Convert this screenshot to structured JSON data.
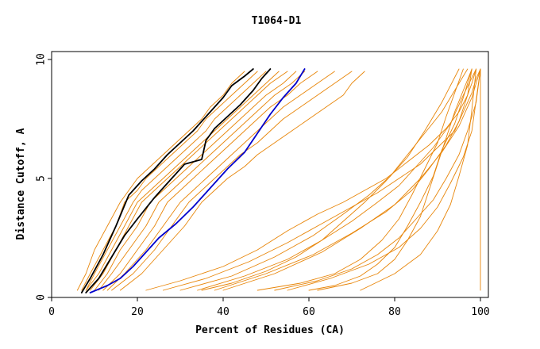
{
  "chart_data": {
    "type": "line",
    "title": "T1064-D1",
    "xlabel": "Percent of Residues (CA)",
    "ylabel": "Distance Cutoff, A",
    "xlim": [
      0,
      100
    ],
    "ylim": [
      0,
      10
    ],
    "xticks": [
      "0",
      "20",
      "40",
      "60",
      "80",
      "100"
    ],
    "yticks": [
      "0",
      "5",
      "10"
    ],
    "grid": false,
    "colors": {
      "models": "#e8860a",
      "highlight": "#000000",
      "reference": "#0000cc",
      "axes": "#000000"
    },
    "series": [
      {
        "group": "models",
        "x": [
          6,
          8,
          10,
          13,
          16,
          18,
          20,
          23,
          26,
          29,
          32,
          35,
          37,
          40,
          42,
          45
        ],
        "y": [
          0.3,
          1,
          2,
          3,
          4,
          4.5,
          5,
          5.5,
          6,
          6.5,
          7,
          7.5,
          8,
          8.5,
          9,
          9.5
        ]
      },
      {
        "group": "models",
        "x": [
          7,
          9,
          12,
          15,
          17,
          20,
          22,
          25,
          28,
          31,
          34,
          36,
          39,
          42,
          45,
          48
        ],
        "y": [
          0.3,
          1,
          2,
          3,
          4,
          4.5,
          5,
          5.5,
          6,
          6.5,
          7,
          7.5,
          8,
          8.5,
          9,
          9.5
        ]
      },
      {
        "group": "models",
        "x": [
          8,
          10,
          13,
          16,
          19,
          21,
          24,
          27,
          30,
          33,
          36,
          38,
          41,
          44,
          47,
          50
        ],
        "y": [
          0.3,
          1,
          2,
          3,
          4,
          4.5,
          5,
          5.5,
          6,
          6.5,
          7,
          7.5,
          8,
          8.5,
          9,
          9.5
        ]
      },
      {
        "group": "models",
        "x": [
          8,
          11,
          14,
          17,
          20,
          23,
          26,
          29,
          32,
          35,
          38,
          41,
          44,
          47,
          50,
          53
        ],
        "y": [
          0.3,
          1,
          2,
          3,
          4,
          4.5,
          5,
          5.5,
          6,
          6.5,
          7,
          7.5,
          8,
          8.5,
          9,
          9.5
        ]
      },
      {
        "group": "models",
        "x": [
          9,
          12,
          15,
          18,
          21,
          24,
          27,
          30,
          33,
          36,
          39,
          42,
          45,
          48,
          51,
          55
        ],
        "y": [
          0.3,
          1,
          2,
          3,
          4,
          4.5,
          5,
          5.5,
          6,
          6.5,
          7,
          7.5,
          8,
          8.5,
          9,
          9.5
        ]
      },
      {
        "group": "models",
        "x": [
          10,
          13,
          16,
          20,
          23,
          26,
          29,
          32,
          35,
          38,
          41,
          44,
          47,
          50,
          54,
          57
        ],
        "y": [
          0.3,
          1,
          2,
          3,
          4,
          4.5,
          5,
          5.5,
          6,
          6.5,
          7,
          7.5,
          8,
          8.5,
          9,
          9.5
        ]
      },
      {
        "group": "models",
        "x": [
          11,
          14,
          18,
          22,
          25,
          28,
          31,
          34,
          37,
          40,
          43,
          46,
          49,
          52,
          56,
          59
        ],
        "y": [
          0.3,
          1,
          2,
          3,
          4,
          4.5,
          5,
          5.5,
          6,
          6.5,
          7,
          7.5,
          8,
          8.5,
          9,
          9.5
        ]
      },
      {
        "group": "models",
        "x": [
          12,
          16,
          20,
          24,
          27,
          30,
          33,
          36,
          39,
          42,
          45,
          48,
          51,
          55,
          58,
          62
        ],
        "y": [
          0.3,
          1,
          2,
          3,
          4,
          4.5,
          5,
          5.5,
          6,
          6.5,
          7,
          7.5,
          8,
          8.5,
          9,
          9.5
        ]
      },
      {
        "group": "models",
        "x": [
          13,
          17,
          22,
          26,
          30,
          33,
          36,
          39,
          42,
          45,
          48,
          51,
          54,
          58,
          62,
          66
        ],
        "y": [
          0.3,
          1,
          2,
          3,
          4,
          4.5,
          5,
          5.5,
          6,
          6.5,
          7,
          7.5,
          8,
          8.5,
          9,
          9.5
        ]
      },
      {
        "group": "models",
        "x": [
          14,
          19,
          24,
          28,
          32,
          35,
          38,
          41,
          44,
          48,
          51,
          54,
          58,
          62,
          66,
          70
        ],
        "y": [
          0.3,
          1,
          2,
          3,
          4,
          4.5,
          5,
          5.5,
          6,
          6.5,
          7,
          7.5,
          8,
          8.5,
          9,
          9.5
        ]
      },
      {
        "group": "models",
        "x": [
          16,
          21,
          26,
          31,
          35,
          38,
          41,
          45,
          48,
          52,
          56,
          60,
          64,
          68,
          70,
          73
        ],
        "y": [
          0.3,
          1,
          2,
          3,
          4,
          4.5,
          5,
          5.5,
          6,
          6.5,
          7,
          7.5,
          8,
          8.5,
          9,
          9.5
        ]
      },
      {
        "group": "models",
        "x": [
          22,
          30,
          40,
          48,
          55,
          62,
          68,
          73,
          78,
          83,
          88,
          92,
          95,
          97,
          98,
          99
        ],
        "y": [
          0.3,
          0.7,
          1.3,
          2,
          2.8,
          3.5,
          4,
          4.5,
          5,
          5.7,
          6.4,
          7.1,
          7.8,
          8.5,
          9,
          9.6
        ]
      },
      {
        "group": "models",
        "x": [
          26,
          36,
          46,
          55,
          63,
          70,
          76,
          81,
          86,
          90,
          94,
          96,
          98,
          99,
          100
        ],
        "y": [
          0.3,
          0.8,
          1.5,
          2.3,
          3.1,
          3.8,
          4.4,
          5,
          5.6,
          6.3,
          7,
          7.8,
          8.6,
          9.2,
          9.6
        ]
      },
      {
        "group": "models",
        "x": [
          34,
          45,
          55,
          63,
          70,
          76,
          81,
          85,
          89,
          93,
          96,
          99
        ],
        "y": [
          0.3,
          0.9,
          1.6,
          2.4,
          3.2,
          4,
          4.7,
          5.5,
          6.3,
          7.3,
          8.5,
          9.6
        ]
      },
      {
        "group": "models",
        "x": [
          38,
          50,
          61,
          70,
          78,
          84,
          88,
          92,
          95,
          97,
          98
        ],
        "y": [
          0.3,
          1,
          1.8,
          2.7,
          3.6,
          4.5,
          5.4,
          6.4,
          7.4,
          8.5,
          9.6
        ]
      },
      {
        "group": "models",
        "x": [
          30,
          42,
          52,
          61,
          68,
          74,
          79,
          83,
          87,
          91,
          94,
          97
        ],
        "y": [
          0.3,
          0.9,
          1.7,
          2.6,
          3.5,
          4.3,
          5.1,
          6,
          6.9,
          7.8,
          8.7,
          9.6
        ]
      },
      {
        "group": "models",
        "x": [
          40,
          52,
          63,
          72,
          80,
          86,
          91,
          95,
          98,
          100
        ],
        "y": [
          0.3,
          1,
          1.9,
          2.9,
          3.9,
          5,
          6.1,
          7.2,
          8.4,
          9.6
        ]
      },
      {
        "group": "models",
        "x": [
          52,
          62,
          70,
          76,
          81,
          85,
          89,
          92,
          95,
          97,
          99,
          100
        ],
        "y": [
          0.3,
          0.7,
          1.2,
          1.8,
          2.5,
          3.3,
          4.1,
          5,
          6,
          7,
          8.2,
          9.6
        ]
      },
      {
        "group": "models",
        "x": [
          55,
          65,
          74,
          81,
          86,
          90,
          93,
          96,
          98,
          99,
          100
        ],
        "y": [
          0.3,
          0.8,
          1.4,
          2.1,
          2.9,
          3.8,
          4.8,
          5.9,
          7,
          8.3,
          9.6
        ]
      },
      {
        "group": "models",
        "x": [
          62,
          70,
          76,
          80,
          83,
          86,
          88,
          90,
          92,
          94,
          96,
          98
        ],
        "y": [
          0.3,
          0.6,
          1,
          1.6,
          2.4,
          3.4,
          4.5,
          5.6,
          6.7,
          7.8,
          8.7,
          9.6
        ]
      },
      {
        "group": "models",
        "x": [
          35,
          42,
          50,
          57,
          63,
          68,
          73,
          78,
          83,
          87,
          91,
          95
        ],
        "y": [
          0.3,
          0.6,
          1.1,
          1.7,
          2.4,
          3.2,
          4,
          4.9,
          5.9,
          7,
          8.2,
          9.6
        ]
      },
      {
        "group": "models",
        "x": [
          48,
          58,
          66,
          72,
          77,
          81,
          84,
          87,
          90,
          92,
          94,
          96
        ],
        "y": [
          0.3,
          0.6,
          1,
          1.6,
          2.4,
          3.3,
          4.3,
          5.4,
          6.5,
          7.6,
          8.6,
          9.6
        ]
      },
      {
        "group": "models",
        "x": [
          100,
          100,
          100,
          100,
          100,
          100,
          100
        ],
        "y": [
          0.3,
          2,
          4,
          6,
          7.5,
          8.5,
          9.6
        ]
      },
      {
        "group": "models",
        "x": [
          72,
          80,
          86,
          90,
          93,
          95,
          97,
          98,
          99
        ],
        "y": [
          0.3,
          1,
          1.8,
          2.8,
          3.9,
          5.1,
          6.4,
          7.9,
          9.6
        ]
      },
      {
        "group": "models",
        "x": [
          60,
          66,
          72,
          76,
          80,
          83,
          86,
          89,
          91,
          94,
          96,
          98
        ],
        "y": [
          0.3,
          0.5,
          0.9,
          1.4,
          2.1,
          3,
          4,
          5.1,
          6.2,
          7.3,
          8.4,
          9.6
        ]
      },
      {
        "group": "highlight",
        "x": [
          7,
          9,
          12,
          15,
          18,
          21,
          24,
          27,
          30,
          33,
          35,
          37,
          40,
          42,
          45,
          47
        ],
        "y": [
          0.2,
          0.8,
          1.8,
          3,
          4.3,
          4.9,
          5.4,
          6,
          6.5,
          7,
          7.4,
          7.8,
          8.4,
          8.9,
          9.3,
          9.6
        ]
      },
      {
        "group": "highlight",
        "x": [
          8,
          11,
          14,
          17,
          20,
          24,
          28,
          31,
          35,
          36,
          38,
          41,
          44,
          47,
          49,
          51
        ],
        "y": [
          0.2,
          0.8,
          1.7,
          2.6,
          3.3,
          4.2,
          5,
          5.6,
          5.8,
          6.6,
          7.1,
          7.6,
          8.1,
          8.7,
          9.2,
          9.6
        ]
      },
      {
        "group": "reference",
        "x": [
          9,
          13,
          16,
          19,
          22,
          25,
          29,
          33,
          37,
          41,
          45,
          48,
          51,
          54,
          57,
          59
        ],
        "y": [
          0.2,
          0.5,
          0.8,
          1.3,
          1.9,
          2.5,
          3.1,
          3.8,
          4.6,
          5.4,
          6.1,
          6.9,
          7.7,
          8.4,
          9,
          9.6
        ]
      }
    ]
  }
}
